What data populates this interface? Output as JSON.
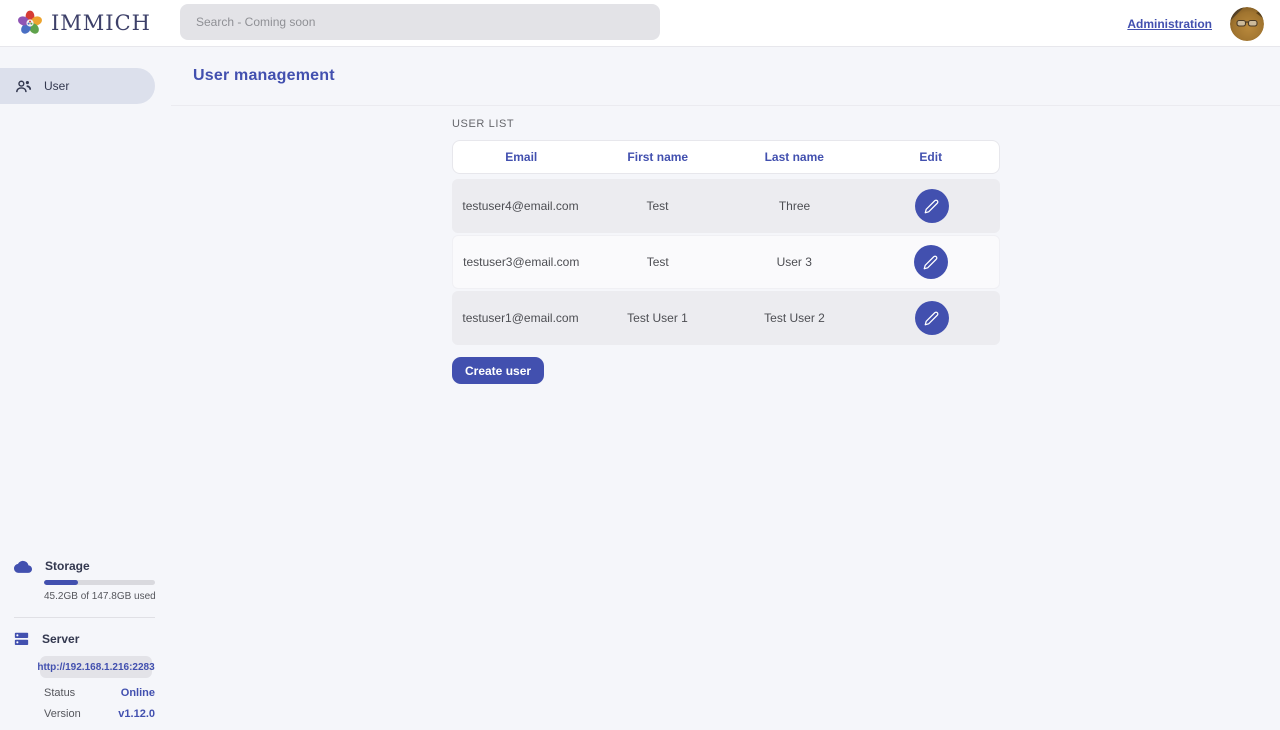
{
  "header": {
    "logo_text": "IMMICH",
    "search_placeholder": "Search - Coming soon",
    "admin_link": "Administration"
  },
  "sidebar": {
    "items": [
      {
        "label": "User",
        "icon": "users-icon"
      }
    ],
    "storage": {
      "title": "Storage",
      "usage_text": "45.2GB of 147.8GB used",
      "percent_used": 30.6,
      "icon": "cloud-icon"
    },
    "server": {
      "title": "Server",
      "url": "http://192.168.1.216:2283",
      "status_label": "Status",
      "status_value": "Online",
      "version_label": "Version",
      "version_value": "v1.12.0",
      "icon": "server-icon"
    }
  },
  "main": {
    "page_title": "User management",
    "section_title": "USER LIST",
    "table": {
      "columns": [
        "Email",
        "First name",
        "Last name",
        "Edit"
      ],
      "rows": [
        {
          "email": "testuser4@email.com",
          "first_name": "Test",
          "last_name": "Three"
        },
        {
          "email": "testuser3@email.com",
          "first_name": "Test",
          "last_name": "User 3"
        },
        {
          "email": "testuser1@email.com",
          "first_name": "Test User 1",
          "last_name": "Test User 2"
        }
      ],
      "edit_icon": "pencil-icon"
    },
    "create_button": "Create user"
  },
  "colors": {
    "primary": "#4250af",
    "status_online": "#4250af",
    "row_alt": "#ececf0",
    "page_bg": "#f5f6fa"
  }
}
